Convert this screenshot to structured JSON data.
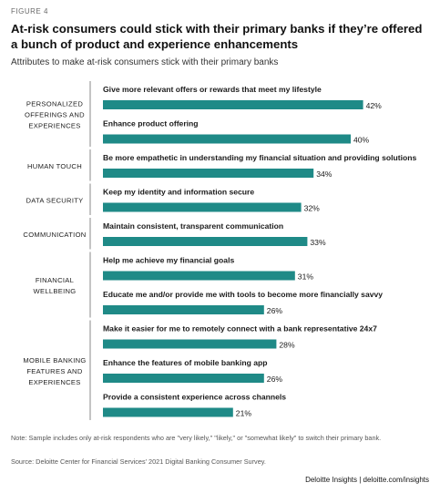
{
  "figure_label": "FIGURE 4",
  "chart_data": {
    "type": "bar",
    "orientation": "horizontal",
    "title": "At-risk consumers could stick with their primary banks if they’re offered a bunch of product and experience enhancements",
    "subtitle": "Attributes to make at-risk consumers stick with their primary banks",
    "value_suffix": "%",
    "xlim": [
      0,
      50
    ],
    "bar_color": "#1f8a87",
    "groups": [
      {
        "lines": [
          "PERSONALIZED",
          "OFFERINGS AND",
          "EXPERIENCES"
        ],
        "items": [
          {
            "label": "Give more relevant offers or rewards that meet my lifestyle",
            "value": 42
          },
          {
            "label": "Enhance product offering",
            "value": 40
          }
        ]
      },
      {
        "lines": [
          "HUMAN TOUCH"
        ],
        "items": [
          {
            "label": "Be more empathetic in understanding my financial situation and providing solutions",
            "value": 34
          }
        ]
      },
      {
        "lines": [
          "DATA SECURITY"
        ],
        "items": [
          {
            "label": "Keep my identity and information secure",
            "value": 32
          }
        ]
      },
      {
        "lines": [
          "COMMUNICATION"
        ],
        "items": [
          {
            "label": "Maintain consistent, transparent communication",
            "value": 33
          }
        ]
      },
      {
        "lines": [
          "FINANCIAL",
          "WELLBEING"
        ],
        "items": [
          {
            "label": "Help me achieve my financial goals",
            "value": 31
          },
          {
            "label": "Educate me and/or provide me with tools to become more financially savvy",
            "value": 26
          }
        ]
      },
      {
        "lines": [
          "MOBILE BANKING",
          "FEATURES AND",
          "EXPERIENCES"
        ],
        "items": [
          {
            "label": "Make it easier for me to remotely connect with a bank representative 24x7",
            "value": 28
          },
          {
            "label": "Enhance the features of mobile banking app",
            "value": 26
          },
          {
            "label": "Provide a consistent experience across channels",
            "value": 21
          }
        ]
      }
    ]
  },
  "note": "Note: Sample includes only at-risk respondents who are \"very likely,\" \"likely,\" or \"somewhat likely\" to switch their primary bank.",
  "source": "Source: Deloitte Center for Financial Services' 2021 Digital Banking Consumer Survey.",
  "footer": "Deloitte Insights | deloitte.com/insights"
}
